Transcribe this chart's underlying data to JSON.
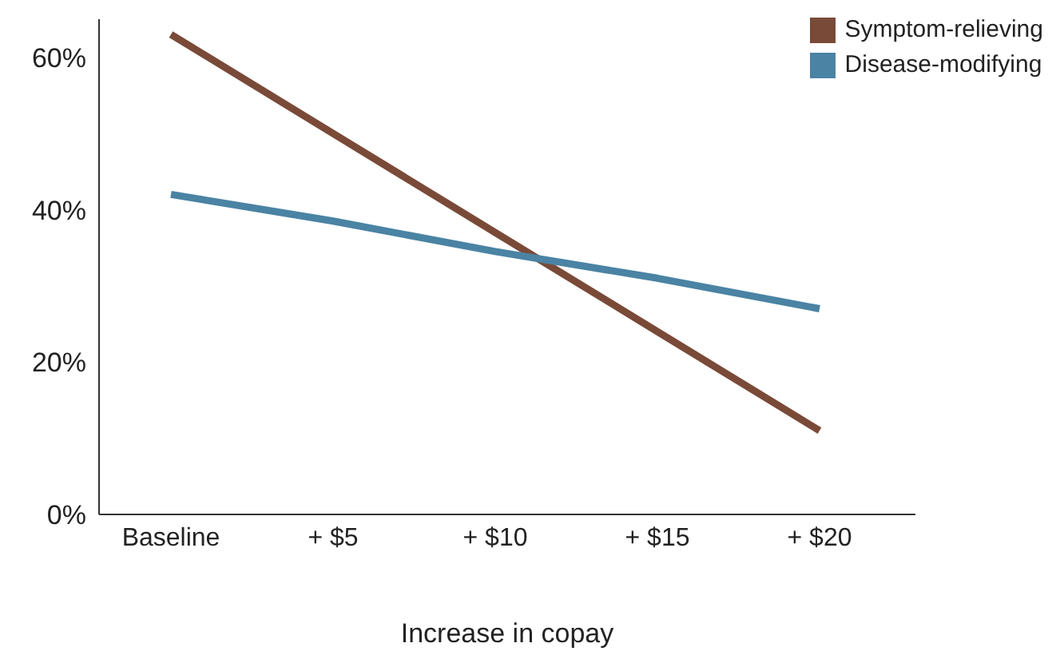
{
  "chart_data": {
    "type": "line",
    "xlabel": "Increase in copay",
    "categories": [
      "Baseline",
      "+ $5",
      "+ $10",
      "+ $15",
      "+ $20"
    ],
    "series": [
      {
        "name": "Symptom-relieving",
        "color": "#7a4a38",
        "values": [
          63,
          50,
          37,
          24,
          11
        ]
      },
      {
        "name": "Disease-modifying",
        "color": "#4a83a3",
        "values": [
          42,
          38.5,
          34.5,
          31,
          27
        ]
      }
    ],
    "ylim": [
      0,
      65
    ],
    "yticks": [
      {
        "value": 0,
        "label": "0%"
      },
      {
        "value": 20,
        "label": "20%"
      },
      {
        "value": 40,
        "label": "40%"
      },
      {
        "value": 60,
        "label": "60%"
      }
    ],
    "grid": false,
    "legend": "top right",
    "marker": "none",
    "line_style": "solid"
  }
}
